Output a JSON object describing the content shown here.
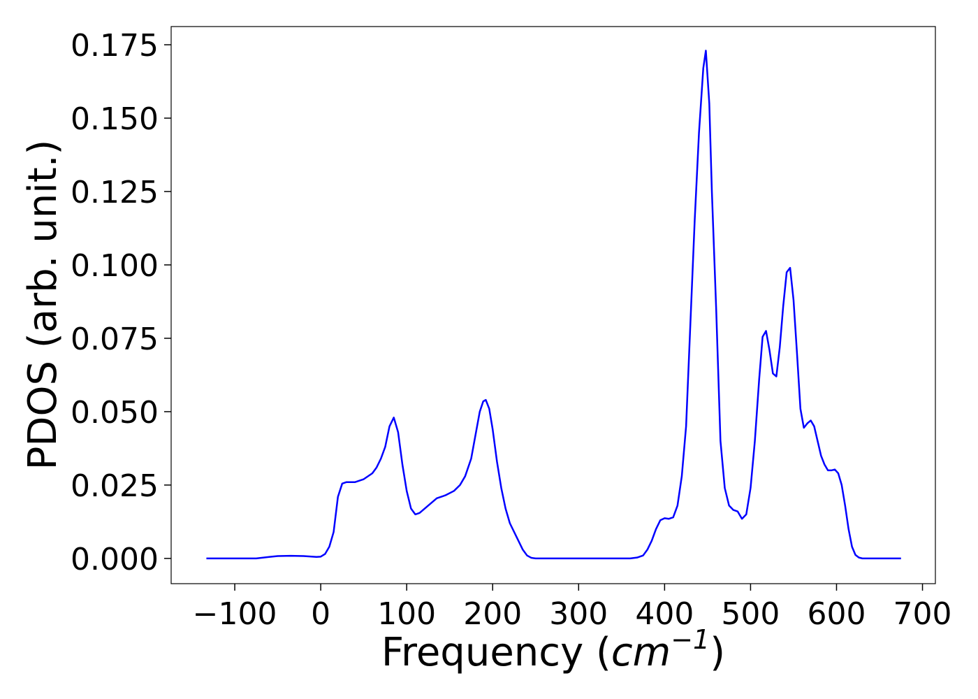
{
  "chart_data": {
    "type": "line",
    "xlabel": [
      "Frequency (",
      "cm",
      "−1",
      ")"
    ],
    "ylabel": "PDOS (arb. unit.)",
    "xlim": [
      -174,
      715
    ],
    "ylim": [
      -0.0086,
      0.1812
    ],
    "xticks": [
      {
        "value": -100,
        "label": "−100"
      },
      0,
      100,
      200,
      300,
      400,
      500,
      600,
      700
    ],
    "yticks": [
      {
        "value": 0,
        "label": "0.000"
      },
      {
        "value": 0.025,
        "label": "0.025"
      },
      {
        "value": 0.05,
        "label": "0.050"
      },
      {
        "value": 0.075,
        "label": "0.075"
      },
      {
        "value": 0.1,
        "label": "0.100"
      },
      {
        "value": 0.125,
        "label": "0.125"
      },
      {
        "value": 0.15,
        "label": "0.150"
      },
      {
        "value": 0.175,
        "label": "0.175"
      }
    ],
    "x": [
      -133,
      -75,
      -60,
      -50,
      -35,
      -20,
      -5,
      0,
      5,
      10,
      15,
      20,
      25,
      30,
      40,
      50,
      60,
      65,
      70,
      75,
      80,
      85,
      90,
      95,
      100,
      105,
      110,
      115,
      125,
      135,
      145,
      155,
      162,
      168,
      175,
      180,
      185,
      189,
      192,
      196,
      200,
      205,
      210,
      215,
      220,
      230,
      235,
      240,
      245,
      250,
      360,
      368,
      375,
      380,
      385,
      390,
      395,
      400,
      405,
      410,
      415,
      420,
      425,
      430,
      435,
      440,
      445,
      448,
      452,
      455,
      460,
      465,
      470,
      475,
      480,
      485,
      490,
      495,
      500,
      505,
      510,
      514,
      518,
      522,
      526,
      530,
      534,
      538,
      542,
      546,
      550,
      554,
      558,
      562,
      566,
      570,
      574,
      578,
      582,
      586,
      590,
      594,
      598,
      602,
      606,
      610,
      614,
      618,
      622,
      626,
      630,
      675
    ],
    "series": [
      {
        "color": "#0000ff",
        "values": [
          0,
          0,
          0.0005,
          0.0008,
          0.0009,
          0.0008,
          0.0005,
          0.0006,
          0.0015,
          0.004,
          0.009,
          0.021,
          0.0255,
          0.026,
          0.026,
          0.027,
          0.029,
          0.031,
          0.034,
          0.038,
          0.045,
          0.048,
          0.043,
          0.032,
          0.023,
          0.017,
          0.015,
          0.0155,
          0.018,
          0.0205,
          0.0215,
          0.023,
          0.025,
          0.028,
          0.034,
          0.042,
          0.05,
          0.0535,
          0.054,
          0.051,
          0.044,
          0.033,
          0.024,
          0.017,
          0.012,
          0.006,
          0.003,
          0.001,
          0.0002,
          0,
          0,
          0.0003,
          0.001,
          0.003,
          0.006,
          0.01,
          0.013,
          0.0137,
          0.0135,
          0.014,
          0.018,
          0.028,
          0.045,
          0.08,
          0.115,
          0.145,
          0.167,
          0.173,
          0.155,
          0.125,
          0.085,
          0.04,
          0.024,
          0.018,
          0.0165,
          0.016,
          0.0135,
          0.015,
          0.024,
          0.04,
          0.061,
          0.0755,
          0.0775,
          0.071,
          0.063,
          0.062,
          0.072,
          0.086,
          0.0975,
          0.099,
          0.088,
          0.07,
          0.051,
          0.0445,
          0.046,
          0.047,
          0.045,
          0.04,
          0.035,
          0.032,
          0.03,
          0.03,
          0.0303,
          0.029,
          0.025,
          0.018,
          0.01,
          0.004,
          0.0012,
          0.0003,
          0,
          0
        ]
      }
    ]
  }
}
